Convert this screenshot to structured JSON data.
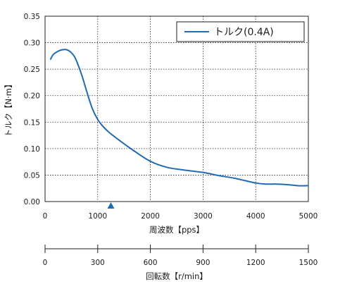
{
  "chart_data": {
    "type": "line",
    "ylabel": "トルク【N·m】",
    "ylim": [
      0,
      0.35
    ],
    "yticks": [
      "0.00",
      "0.05",
      "0.10",
      "0.15",
      "0.20",
      "0.25",
      "0.30",
      "0.35"
    ],
    "xlabel": "周波数【pps】",
    "xlim": [
      0,
      5000
    ],
    "xticks": [
      "0",
      "1000",
      "2000",
      "3000",
      "4000",
      "5000"
    ],
    "x2label": "回転数【r/min】",
    "x2lim": [
      0,
      1500
    ],
    "x2ticks": [
      "0",
      "300",
      "600",
      "900",
      "1200",
      "1500"
    ],
    "grid": true,
    "legend_position": "top-right",
    "marker_x": 1250,
    "series": [
      {
        "name": "トルク(0.4A)",
        "color": "#1f6bb3",
        "x": [
          100,
          150,
          200,
          250,
          300,
          350,
          400,
          450,
          500,
          550,
          600,
          700,
          800,
          900,
          1000,
          1100,
          1200,
          1300,
          1500,
          1700,
          2000,
          2300,
          2600,
          3000,
          3300,
          3600,
          4000,
          4200,
          4400,
          4600,
          4800,
          5000
        ],
        "y": [
          0.268,
          0.277,
          0.281,
          0.284,
          0.286,
          0.287,
          0.287,
          0.285,
          0.281,
          0.275,
          0.265,
          0.238,
          0.205,
          0.175,
          0.155,
          0.142,
          0.132,
          0.124,
          0.109,
          0.095,
          0.076,
          0.065,
          0.06,
          0.055,
          0.049,
          0.044,
          0.035,
          0.033,
          0.033,
          0.032,
          0.03,
          0.03
        ]
      }
    ]
  }
}
